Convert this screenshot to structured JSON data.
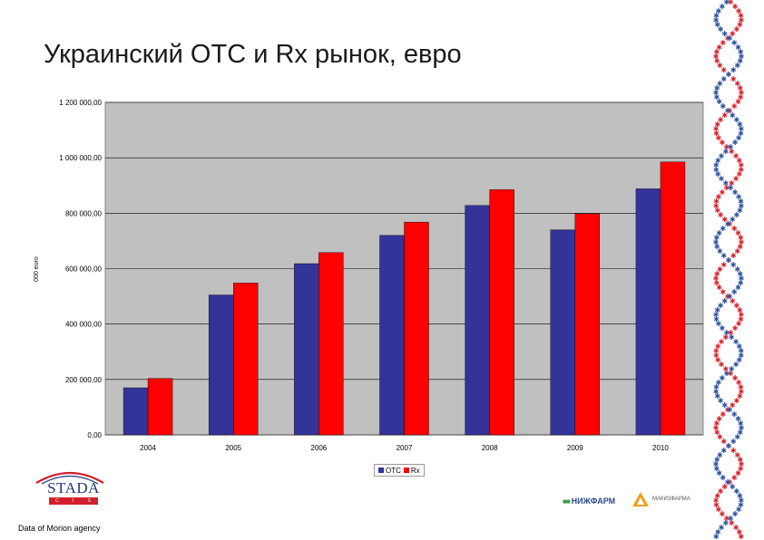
{
  "title": "Украинский OTC и Rx рынок, евро",
  "source": "Data of Morion agency",
  "colors": {
    "otc": "#333399",
    "rx": "#ff0000",
    "plot_bg": "#c0c0c0",
    "dna_red": "#d81e2a",
    "dna_blue": "#2a4fa0"
  },
  "chart_data": {
    "type": "bar",
    "categories": [
      "2004",
      "2005",
      "2006",
      "2007",
      "2008",
      "2009",
      "2010"
    ],
    "series": [
      {
        "name": "OTC",
        "values": [
          170000,
          505000,
          618000,
          720000,
          828000,
          740000,
          888000
        ]
      },
      {
        "name": "Rx",
        "values": [
          204000,
          548000,
          658000,
          768000,
          885000,
          798000,
          985000
        ]
      }
    ],
    "title": "",
    "xlabel": "",
    "ylabel": "000 euro",
    "ylim": [
      0,
      1200000
    ],
    "yticks": [
      0,
      200000,
      400000,
      600000,
      800000,
      1000000,
      1200000
    ],
    "ytick_labels": [
      "0,00",
      "200 000,00",
      "400 000,00",
      "600 000,00",
      "800 000,00",
      "1 000 000,00",
      "1 200 000,00"
    ],
    "grid": true,
    "legend": "bottom"
  },
  "logos": {
    "stada_name": "STADA",
    "stada_strip": [
      "C",
      "I",
      "S"
    ],
    "partner_1": "НИЖФАРМ",
    "partner_2": "МАКИЗФАРМА"
  }
}
